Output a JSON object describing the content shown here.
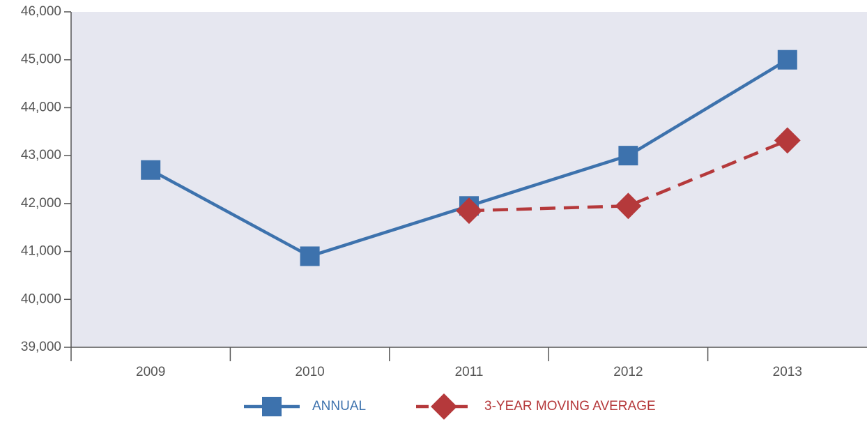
{
  "chart_data": {
    "type": "line",
    "categories": [
      "2009",
      "2010",
      "2011",
      "2012",
      "2013"
    ],
    "series": [
      {
        "name": "ANNUAL",
        "color": "#3d72ad",
        "marker": "square",
        "dash": false,
        "values": [
          42700,
          40900,
          41950,
          43000,
          45000
        ]
      },
      {
        "name": "3-YEAR MOVING AVERAGE",
        "color": "#b5393b",
        "marker": "diamond",
        "dash": true,
        "values": [
          null,
          null,
          41850,
          41950,
          43317
        ]
      }
    ],
    "ylim": [
      39000,
      46000
    ],
    "yticks": [
      {
        "value": 39000,
        "label": "39,000"
      },
      {
        "value": 40000,
        "label": "40,000"
      },
      {
        "value": 41000,
        "label": "41,000"
      },
      {
        "value": 42000,
        "label": "42,000"
      },
      {
        "value": 43000,
        "label": "43,000"
      },
      {
        "value": 44000,
        "label": "44,000"
      },
      {
        "value": 45000,
        "label": "45,000"
      },
      {
        "value": 46000,
        "label": "46,000"
      }
    ],
    "background": "#e6e7f0",
    "legend": "bottom"
  }
}
